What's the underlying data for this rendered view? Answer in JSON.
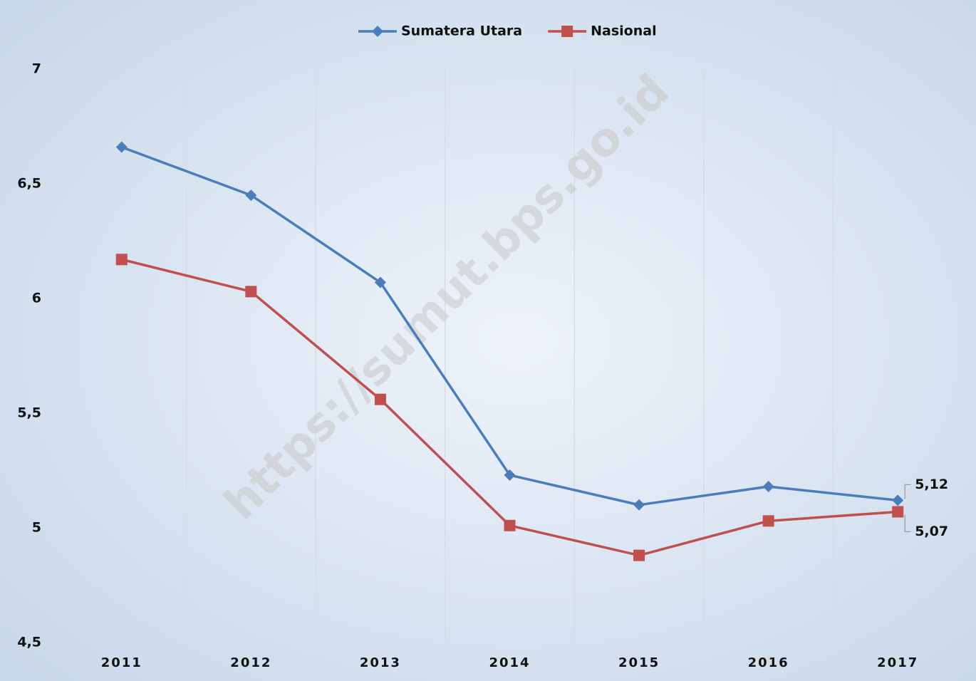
{
  "chart_data": {
    "type": "line",
    "categories": [
      "2011",
      "2012",
      "2013",
      "2014",
      "2015",
      "2016",
      "2017"
    ],
    "series": [
      {
        "name": "Sumatera Utara",
        "color": "#4a7ebb",
        "marker": "diamond",
        "values": [
          6.66,
          6.45,
          6.07,
          5.23,
          5.1,
          5.18,
          5.12
        ],
        "value_labels": [
          null,
          null,
          null,
          null,
          null,
          null,
          "5,12"
        ]
      },
      {
        "name": "Nasional",
        "color": "#c0504d",
        "marker": "square",
        "values": [
          6.17,
          6.03,
          5.56,
          5.01,
          4.88,
          5.03,
          5.07
        ],
        "value_labels": [
          null,
          null,
          null,
          null,
          null,
          null,
          "5,07"
        ]
      }
    ],
    "ylim": [
      4.5,
      7
    ],
    "yticks": [
      {
        "value": 4.5,
        "label": "4,5"
      },
      5,
      {
        "value": 5.5,
        "label": "5,5"
      },
      6,
      {
        "value": 6.5,
        "label": "6,5"
      },
      7
    ],
    "legend": "top",
    "annotations": [
      "https://sumut.bps.go.id"
    ]
  }
}
